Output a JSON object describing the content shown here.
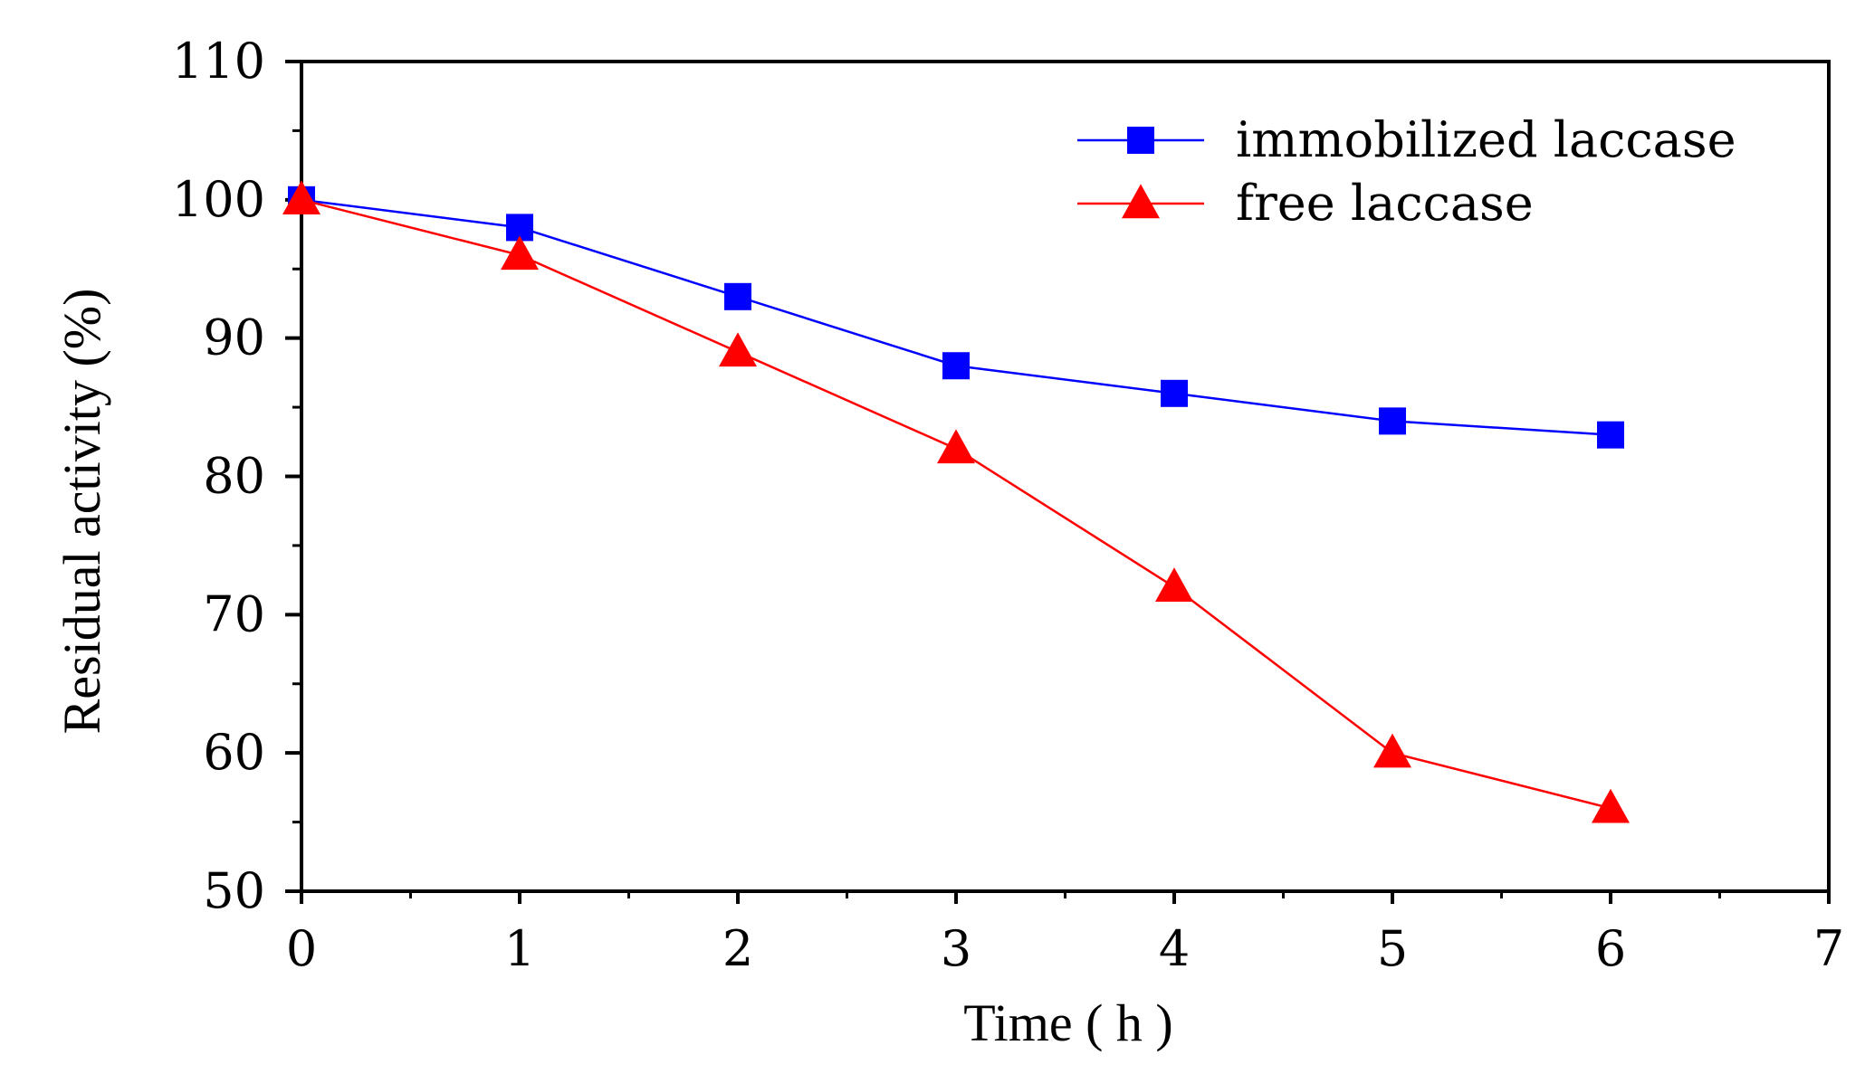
{
  "chart_data": {
    "type": "line",
    "title": "",
    "xlabel": "Time ( h )",
    "ylabel": "Residual activity (%)",
    "x": [
      0,
      1,
      2,
      3,
      4,
      5,
      6
    ],
    "xlim": [
      0,
      7
    ],
    "ylim": [
      50,
      110
    ],
    "xticks": [
      0,
      1,
      2,
      3,
      4,
      5,
      6,
      7
    ],
    "yticks": [
      50,
      60,
      70,
      80,
      90,
      100,
      110
    ],
    "xtick_labels": [
      "0",
      "1",
      "2",
      "3",
      "4",
      "5",
      "6",
      "7"
    ],
    "ytick_labels": [
      "50",
      "60",
      "70",
      "80",
      "90",
      "100",
      "110"
    ],
    "grid": false,
    "legend_position": "top-right",
    "series": [
      {
        "name": "immobilized laccase",
        "marker": "square",
        "color": "#0000ff",
        "values": [
          100,
          98,
          93,
          88,
          86,
          84,
          83
        ]
      },
      {
        "name": "free laccase",
        "marker": "triangle",
        "color": "#ff0000",
        "values": [
          100,
          96,
          89,
          82,
          72,
          60,
          56
        ]
      }
    ]
  }
}
